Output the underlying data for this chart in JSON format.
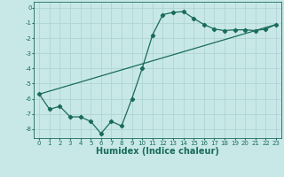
{
  "xlabel": "Humidex (Indice chaleur)",
  "bg_color": "#c8e8e8",
  "grid_color": "#afd4d4",
  "line_color": "#1a6b5a",
  "xlim": [
    -0.5,
    23.5
  ],
  "ylim": [
    -8.6,
    0.4
  ],
  "yticks": [
    0,
    -1,
    -2,
    -3,
    -4,
    -5,
    -6,
    -7,
    -8
  ],
  "xticks": [
    0,
    1,
    2,
    3,
    4,
    5,
    6,
    7,
    8,
    9,
    10,
    11,
    12,
    13,
    14,
    15,
    16,
    17,
    18,
    19,
    20,
    21,
    22,
    23
  ],
  "curve_x": [
    0,
    1,
    2,
    3,
    4,
    5,
    6,
    7,
    8,
    9,
    10,
    11,
    12,
    13,
    14,
    15,
    16,
    17,
    18,
    19,
    20,
    21,
    22,
    23
  ],
  "curve_y": [
    -5.7,
    -6.7,
    -6.5,
    -7.2,
    -7.2,
    -7.5,
    -8.3,
    -7.5,
    -7.8,
    -6.0,
    -4.0,
    -1.8,
    -0.45,
    -0.3,
    -0.25,
    -0.7,
    -1.1,
    -1.4,
    -1.5,
    -1.45,
    -1.45,
    -1.5,
    -1.4,
    -1.1
  ],
  "line_x": [
    0,
    23
  ],
  "line_y": [
    -5.7,
    -1.1
  ],
  "marker": "D",
  "markersize": 2.2,
  "linewidth": 0.9,
  "tick_fontsize": 5.0,
  "xlabel_fontsize": 7.0
}
